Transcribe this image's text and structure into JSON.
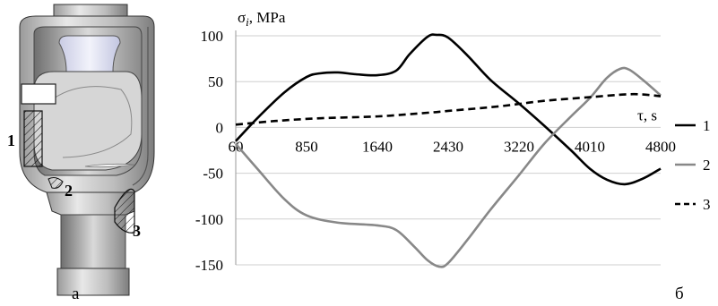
{
  "figure": {
    "panel_a_label": "а",
    "panel_b_label": "б",
    "drawing_callouts": [
      "1",
      "2",
      "3"
    ]
  },
  "chart_data": {
    "type": "line",
    "title": "",
    "ylabel": "σᵢ, MPa",
    "xlabel": "τ, s",
    "x_ticks": [
      60,
      850,
      1640,
      2430,
      3220,
      4010,
      4800
    ],
    "xlim": [
      60,
      4800
    ],
    "y_ticks": [
      100,
      50,
      0,
      -50,
      -100,
      -150
    ],
    "ylim": [
      -150,
      100
    ],
    "grid": "horizontal",
    "legend_position": "right",
    "series": [
      {
        "name": "1",
        "color": "#000000",
        "style": "solid",
        "x": [
          60,
          300,
          600,
          850,
          1000,
          1200,
          1400,
          1640,
          1850,
          2000,
          2200,
          2300,
          2430,
          2650,
          2900,
          3220,
          3500,
          3800,
          4010,
          4200,
          4400,
          4600,
          4800
        ],
        "y": [
          -15,
          10,
          38,
          55,
          59,
          60,
          58,
          57,
          62,
          80,
          99,
          101,
          98,
          78,
          52,
          26,
          2,
          -25,
          -45,
          -57,
          -62,
          -56,
          -45
        ]
      },
      {
        "name": "2",
        "color": "#888888",
        "style": "solid",
        "x": [
          60,
          300,
          600,
          850,
          1200,
          1640,
          1850,
          2050,
          2200,
          2330,
          2430,
          2650,
          2900,
          3220,
          3500,
          3800,
          4010,
          4200,
          4350,
          4450,
          4600,
          4800
        ],
        "y": [
          -18,
          -45,
          -78,
          -96,
          -104,
          -107,
          -112,
          -130,
          -145,
          -152,
          -148,
          -122,
          -90,
          -52,
          -18,
          12,
          32,
          54,
          64,
          63,
          52,
          35
        ]
      },
      {
        "name": "3",
        "color": "#000000",
        "style": "dashed",
        "x": [
          60,
          500,
          1000,
          1640,
          2200,
          2430,
          3000,
          3500,
          4010,
          4400,
          4600,
          4800
        ],
        "y": [
          3,
          7,
          10,
          12,
          16,
          18,
          23,
          29,
          33,
          36,
          36,
          34
        ]
      }
    ]
  }
}
